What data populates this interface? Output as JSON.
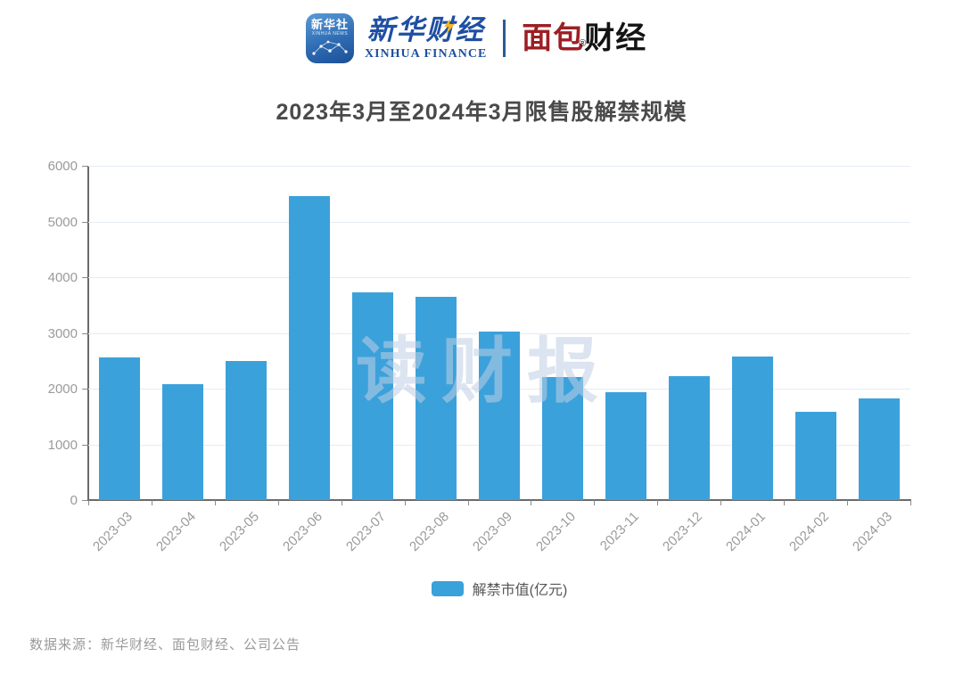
{
  "header": {
    "xinhua_news_icon": {
      "line1": "新华社",
      "line2": "XINHUA NEWS"
    },
    "xinhua_finance": {
      "cn": "新华财经",
      "en": "XINHUA FINANCE"
    },
    "bread_finance": {
      "part1": "面包",
      "part2": "财经",
      "reg_mark": "®"
    },
    "colors": {
      "frame_blue": "#2d5a96",
      "frame_red": "#c12630"
    }
  },
  "chart_data": {
    "type": "bar",
    "title": "2023年3月至2024年3月限售股解禁规模",
    "categories": [
      "2023-03",
      "2023-04",
      "2023-05",
      "2023-06",
      "2023-07",
      "2023-08",
      "2023-09",
      "2023-10",
      "2023-11",
      "2023-12",
      "2024-01",
      "2024-02",
      "2024-03"
    ],
    "values": [
      2560,
      2080,
      2490,
      5450,
      3730,
      3650,
      3030,
      2210,
      1940,
      2230,
      2570,
      1580,
      1830
    ],
    "series_name": "解禁市值(亿元)",
    "xlabel": "",
    "ylabel": "",
    "ylim": [
      0,
      6000
    ],
    "y_ticks": [
      0,
      1000,
      2000,
      3000,
      4000,
      5000,
      6000
    ],
    "bar_color": "#3BA1DB",
    "grid": "horizontal",
    "legend_position": "bottom-center",
    "watermark": "读财报"
  },
  "legend": {
    "label": "解禁市值(亿元)",
    "swatch_color": "#3BA1DB"
  },
  "footer": {
    "source": "数据来源：新华财经、面包财经、公司公告"
  }
}
